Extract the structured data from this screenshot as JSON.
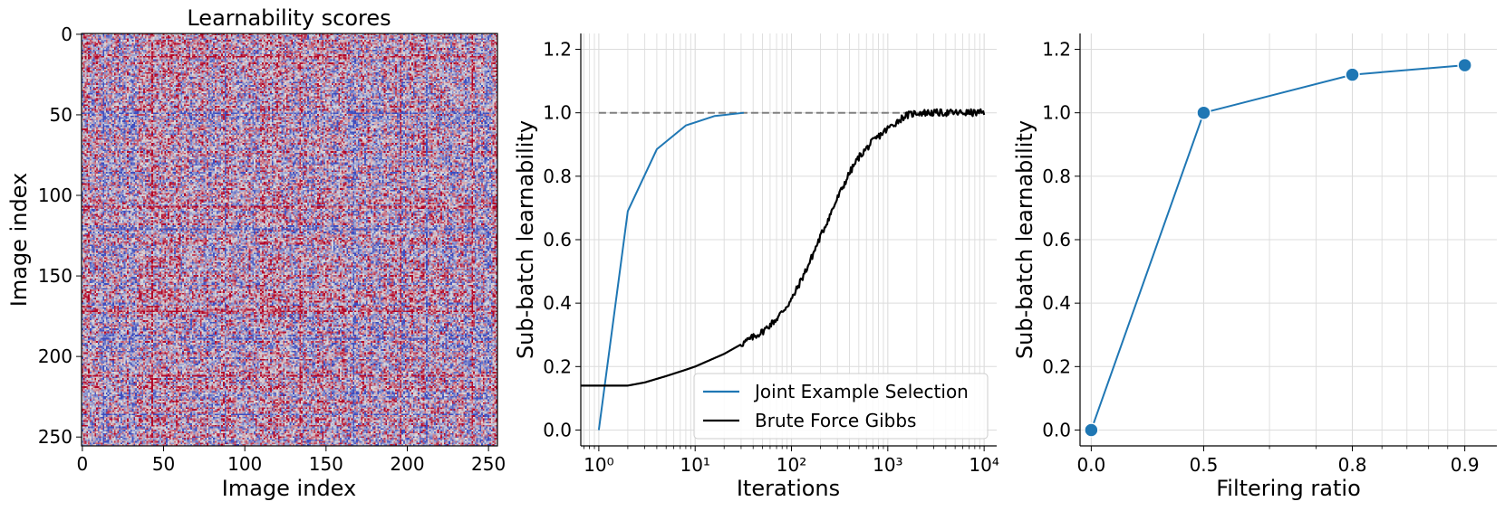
{
  "chart_data": [
    {
      "type": "heatmap",
      "title": "Learnability scores",
      "xlabel": "Image index",
      "ylabel": "Image index",
      "xlim": [
        0,
        256
      ],
      "ylim": [
        256,
        0
      ],
      "xticks": [
        0,
        50,
        100,
        150,
        200,
        250
      ],
      "yticks": [
        0,
        50,
        100,
        150,
        200,
        250
      ],
      "size": 256,
      "colormap": [
        "#3b4cc0",
        "#dddddd",
        "#b40426"
      ],
      "strong_rows": [
        14,
        49,
        107,
        121,
        172,
        189,
        212,
        236
      ],
      "strong_cols": [
        13,
        43,
        88,
        134,
        167,
        196,
        212,
        240
      ]
    },
    {
      "type": "line",
      "title": "",
      "xlabel": "Iterations",
      "ylabel": "Sub-batch learnability",
      "xscale": "log",
      "xlim": [
        0.65,
        13500
      ],
      "ylim": [
        -0.05,
        1.25
      ],
      "xticks": [
        1,
        10,
        100,
        1000,
        10000
      ],
      "xtick_labels": [
        "10⁰",
        "10¹",
        "10²",
        "10³",
        "10⁴"
      ],
      "yticks": [
        0.0,
        0.2,
        0.4,
        0.6,
        0.8,
        1.0,
        1.2
      ],
      "grid": true,
      "legend": "bottom-right",
      "reference_line": {
        "y": 1.0,
        "from": 1,
        "to": 10000,
        "color": "#808080",
        "style": "dashed"
      },
      "series": [
        {
          "name": "Joint Example Selection",
          "color": "#1f77b4",
          "x": [
            1,
            2,
            4,
            8,
            16,
            32
          ],
          "y": [
            0.0,
            0.69,
            0.885,
            0.96,
            0.99,
            1.0
          ]
        },
        {
          "name": "Brute Force Gibbs",
          "color": "#000000",
          "x": [
            0.65,
            1,
            2,
            3,
            5,
            8,
            10,
            20,
            30,
            50,
            70,
            100,
            150,
            200,
            300,
            400,
            500,
            700,
            1000,
            1500,
            2000,
            3000,
            5000,
            10000
          ],
          "y": [
            0.14,
            0.14,
            0.14,
            0.15,
            0.17,
            0.19,
            0.2,
            0.24,
            0.27,
            0.31,
            0.35,
            0.41,
            0.52,
            0.61,
            0.73,
            0.81,
            0.86,
            0.91,
            0.95,
            0.99,
            1.0,
            1.0,
            1.0,
            1.0
          ]
        }
      ]
    },
    {
      "type": "line",
      "title": "",
      "xlabel": "Filtering ratio",
      "ylabel": "Sub-batch learnability",
      "xscale": "log",
      "x_transform": "1/(1-r)",
      "xlim": [
        0.0,
        0.91
      ],
      "ylim": [
        -0.05,
        1.25
      ],
      "xticks": [
        0.0,
        0.5,
        0.8,
        0.9
      ],
      "xtick_labels": [
        "0.0",
        "0.5",
        "0.8",
        "0.9"
      ],
      "yticks": [
        0.0,
        0.2,
        0.4,
        0.6,
        0.8,
        1.0,
        1.2
      ],
      "grid": true,
      "series": [
        {
          "name": "",
          "color": "#1f77b4",
          "x": [
            0.0,
            0.5,
            0.8,
            0.9
          ],
          "y": [
            0.0,
            1.0,
            1.12,
            1.15
          ]
        }
      ]
    }
  ]
}
